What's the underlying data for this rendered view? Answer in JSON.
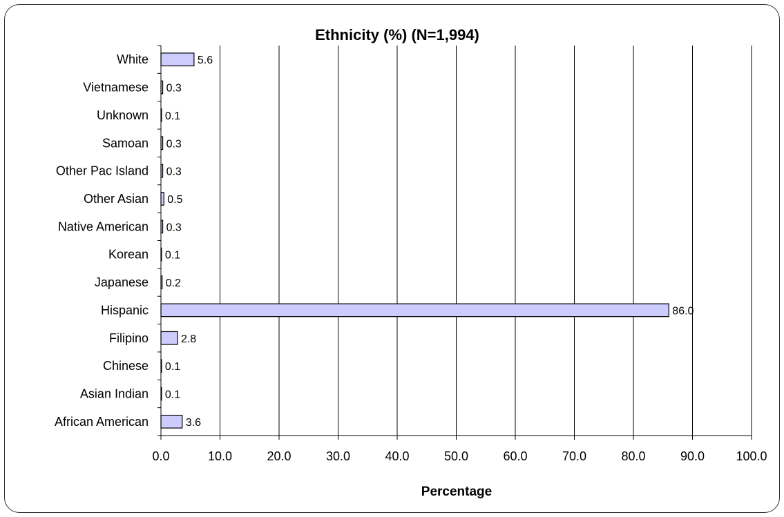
{
  "chart_data": {
    "type": "bar",
    "orientation": "horizontal",
    "title": "Ethnicity (%) (N=1,994)",
    "xlabel": "Percentage",
    "ylabel": "",
    "xlim": [
      0,
      100
    ],
    "x_ticks": [
      "0.0",
      "10.0",
      "20.0",
      "30.0",
      "40.0",
      "50.0",
      "60.0",
      "70.0",
      "80.0",
      "90.0",
      "100.0"
    ],
    "grid": "vertical",
    "categories": [
      "White",
      "Vietnamese",
      "Unknown",
      "Samoan",
      "Other Pac Island",
      "Other Asian",
      "Native American",
      "Korean",
      "Japanese",
      "Hispanic",
      "Filipino",
      "Chinese",
      "Asian Indian",
      "African American"
    ],
    "values": [
      5.6,
      0.3,
      0.1,
      0.3,
      0.3,
      0.5,
      0.3,
      0.1,
      0.2,
      86.0,
      2.8,
      0.1,
      0.1,
      3.6
    ],
    "value_labels": [
      "5.6",
      "0.3",
      "0.1",
      "0.3",
      "0.3",
      "0.5",
      "0.3",
      "0.1",
      "0.2",
      "86.0",
      "2.8",
      "0.1",
      "0.1",
      "3.6"
    ],
    "bar_color": "#ccccff",
    "bar_edge_color": "#000000"
  }
}
